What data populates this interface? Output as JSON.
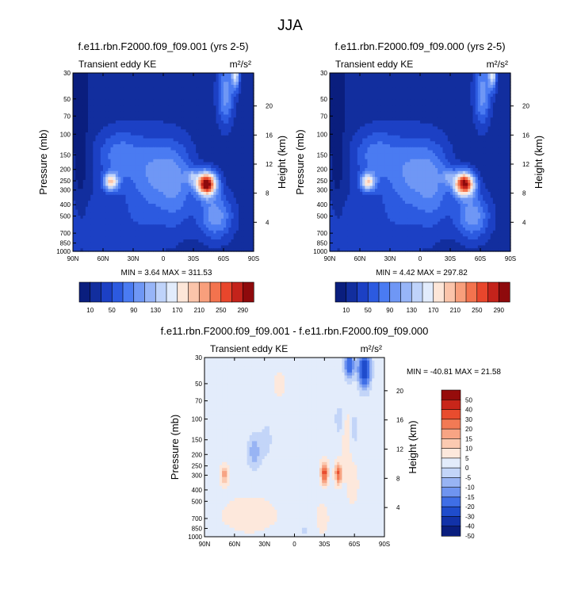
{
  "figure": {
    "main_title": "JJA"
  },
  "colors": {
    "abs_palette": [
      "#0a1e7e",
      "#122e9e",
      "#1c40c4",
      "#2c5ae0",
      "#4a7bf2",
      "#6f97f5",
      "#97b5f8",
      "#bfd3fa",
      "#e2ecfc",
      "#fde6d8",
      "#fbc4aa",
      "#f89f7c",
      "#f3734e",
      "#e8462c",
      "#c4231b",
      "#8e0a0c"
    ],
    "diff_palette": [
      "#0a1e7e",
      "#1232a8",
      "#1f4ccc",
      "#3f6ee6",
      "#6f94f0",
      "#98b4f4",
      "#c3d5f8",
      "#e3ecfb",
      "#fde8dc",
      "#fbcab1",
      "#f7a484",
      "#f27a55",
      "#e84c2e",
      "#c8261a",
      "#960c0b"
    ]
  },
  "chart_data": [
    {
      "type": "heatmap",
      "title": "f.e11.rbn.F2000.f09_f09.001 (yrs 2-5)",
      "left_label": "Transient eddy KE",
      "units": "m²/s²",
      "ylabel": "Pressure (mb)",
      "ylabel_right": "Height (km)",
      "x_ticks": [
        "90N",
        "60N",
        "30N",
        "0",
        "30S",
        "60S",
        "90S"
      ],
      "y_ticks": [
        "30",
        "50",
        "70",
        "100",
        "150",
        "200",
        "250",
        "300",
        "400",
        "500",
        "700",
        "850",
        "1000"
      ],
      "y_right_ticks": [
        "20",
        "16",
        "12",
        "8",
        "4"
      ],
      "min_text": "MIN =   3.64  MAX = 311.53",
      "colorbar_labels": [
        "10",
        "50",
        "90",
        "130",
        "170",
        "210",
        "250",
        "290"
      ],
      "blobs": [
        {
          "lat": -43,
          "p": 265,
          "amp": 290,
          "slat": 10,
          "sp": 0.23
        },
        {
          "lat": -28,
          "p": 230,
          "amp": 60,
          "slat": 6,
          "sp": 0.15
        },
        {
          "lat": 52,
          "p": 255,
          "amp": 155,
          "slat": 7,
          "sp": 0.17
        },
        {
          "lat": -62,
          "p": 45,
          "amp": 85,
          "slat": 8,
          "sp": 0.6
        },
        {
          "lat": -72,
          "p": 30,
          "amp": 135,
          "slat": 4,
          "sp": 0.3
        },
        {
          "lat": -52,
          "p": 500,
          "amp": 85,
          "slat": 17,
          "sp": 0.45
        },
        {
          "lat": 45,
          "p": 150,
          "amp": 55,
          "slat": 22,
          "sp": 0.5
        },
        {
          "lat": 0,
          "p": 190,
          "amp": 30,
          "slat": 25,
          "sp": 0.55
        },
        {
          "lat": -15,
          "p": 300,
          "amp": 40,
          "slat": 16,
          "sp": 0.8
        }
      ]
    },
    {
      "type": "heatmap",
      "title": "f.e11.rbn.F2000.f09_f09.000 (yrs 2-5)",
      "left_label": "Transient eddy KE",
      "units": "m²/s²",
      "ylabel": "Pressure (mb)",
      "ylabel_right": "Height (km)",
      "x_ticks": [
        "90N",
        "60N",
        "30N",
        "0",
        "30S",
        "60S",
        "90S"
      ],
      "y_ticks": [
        "30",
        "50",
        "70",
        "100",
        "150",
        "200",
        "250",
        "300",
        "400",
        "500",
        "700",
        "850",
        "1000"
      ],
      "y_right_ticks": [
        "20",
        "16",
        "12",
        "8",
        "4"
      ],
      "min_text": "MIN =   4.42  MAX = 297.82",
      "colorbar_labels": [
        "10",
        "50",
        "90",
        "130",
        "170",
        "210",
        "250",
        "290"
      ],
      "blobs": [
        {
          "lat": -44,
          "p": 265,
          "amp": 275,
          "slat": 10,
          "sp": 0.23
        },
        {
          "lat": -28,
          "p": 230,
          "amp": 55,
          "slat": 6,
          "sp": 0.15
        },
        {
          "lat": 52,
          "p": 255,
          "amp": 150,
          "slat": 7,
          "sp": 0.17
        },
        {
          "lat": -62,
          "p": 45,
          "amp": 85,
          "slat": 8,
          "sp": 0.6
        },
        {
          "lat": -72,
          "p": 30,
          "amp": 140,
          "slat": 4,
          "sp": 0.3
        },
        {
          "lat": -52,
          "p": 500,
          "amp": 85,
          "slat": 17,
          "sp": 0.45
        },
        {
          "lat": 45,
          "p": 150,
          "amp": 55,
          "slat": 22,
          "sp": 0.5
        },
        {
          "lat": 0,
          "p": 190,
          "amp": 30,
          "slat": 25,
          "sp": 0.55
        },
        {
          "lat": -15,
          "p": 300,
          "amp": 40,
          "slat": 16,
          "sp": 0.8
        }
      ]
    },
    {
      "type": "heatmap",
      "title": "f.e11.rbn.F2000.f09_f09.001 - f.e11.rbn.F2000.f09_f09.000",
      "left_label": "Transient eddy KE",
      "units": "m²/s²",
      "ylabel": "Pressure (mb)",
      "ylabel_right": "Height (km)",
      "x_ticks": [
        "90N",
        "60N",
        "30N",
        "0",
        "30S",
        "60S",
        "90S"
      ],
      "y_ticks": [
        "30",
        "50",
        "70",
        "100",
        "150",
        "200",
        "250",
        "300",
        "400",
        "500",
        "700",
        "850",
        "1000"
      ],
      "y_right_ticks": [
        "20",
        "16",
        "12",
        "8",
        "4"
      ],
      "min_text": "MIN = -40.81  MAX =  21.58",
      "colorbar_labels": [
        "50",
        "40",
        "30",
        "20",
        "15",
        "10",
        "5",
        "0",
        "-5",
        "-10",
        "-15",
        "-20",
        "-30",
        "-40",
        "-50"
      ],
      "levels": [
        -50,
        -40,
        -30,
        -20,
        -15,
        -10,
        -5,
        0,
        5,
        10,
        15,
        20,
        30,
        40,
        50
      ],
      "base": -1.5,
      "blobs": [
        {
          "lat": -30,
          "p": 290,
          "amp": 25,
          "slat": 3.5,
          "sp": 0.2
        },
        {
          "lat": -44,
          "p": 290,
          "amp": 22,
          "slat": 3.5,
          "sp": 0.2
        },
        {
          "lat": 70,
          "p": 300,
          "amp": 14,
          "slat": 4,
          "sp": 0.17
        },
        {
          "lat": -58,
          "p": 350,
          "amp": 6,
          "slat": 5,
          "sp": 0.35
        },
        {
          "lat": 45,
          "p": 650,
          "amp": 4,
          "slat": 28,
          "sp": 0.35
        },
        {
          "lat": -28,
          "p": 700,
          "amp": 6,
          "slat": 5,
          "sp": 0.25
        },
        {
          "lat": -52,
          "p": 150,
          "amp": 6,
          "slat": 4,
          "sp": 0.5
        },
        {
          "lat": -70,
          "p": 38,
          "amp": -38,
          "slat": 6,
          "sp": 0.35
        },
        {
          "lat": -55,
          "p": 35,
          "amp": -26,
          "slat": 5,
          "sp": 0.25
        },
        {
          "lat": -45,
          "p": 100,
          "amp": -7,
          "slat": 5,
          "sp": 0.3
        },
        {
          "lat": -60,
          "p": 120,
          "amp": -6,
          "slat": 3,
          "sp": 0.4
        },
        {
          "lat": 40,
          "p": 190,
          "amp": -12,
          "slat": 7,
          "sp": 0.35
        },
        {
          "lat": 28,
          "p": 150,
          "amp": -8,
          "slat": 5,
          "sp": 0.3
        },
        {
          "lat": 15,
          "p": 50,
          "amp": 3,
          "slat": 6,
          "sp": 0.3
        },
        {
          "lat": -10,
          "p": 900,
          "amp": -4,
          "slat": 6,
          "sp": 0.2
        }
      ]
    }
  ]
}
